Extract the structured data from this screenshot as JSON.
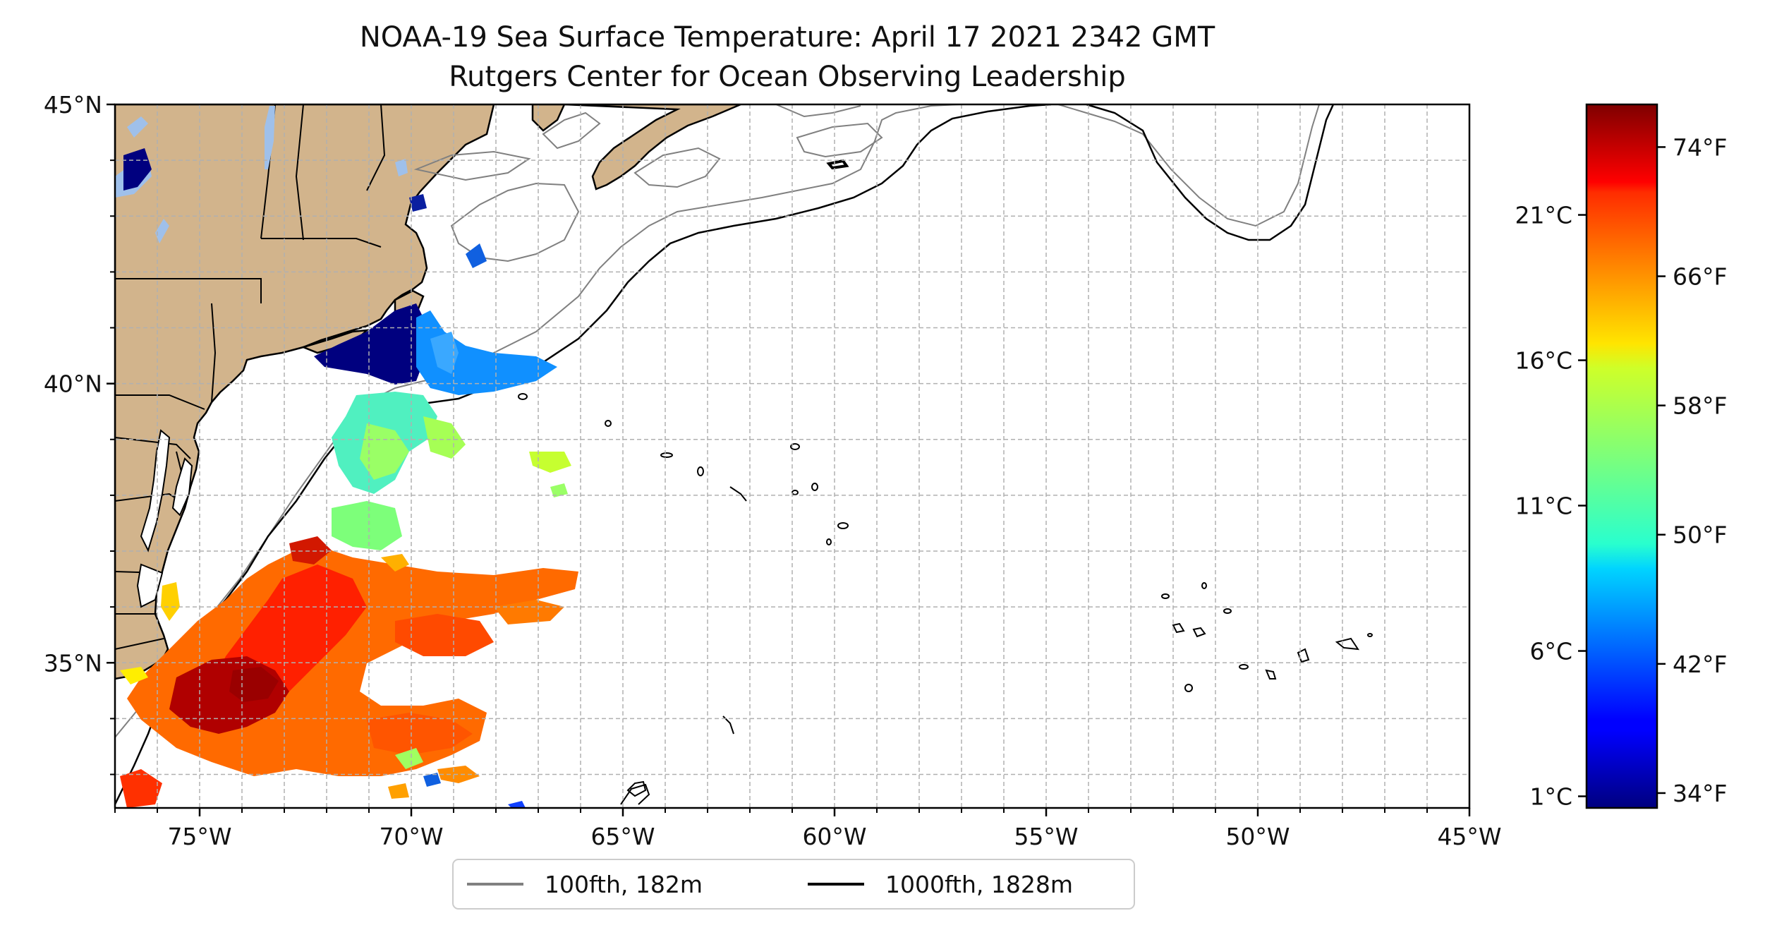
{
  "title": "NOAA-19 Sea Surface Temperature: April 17 2021 2342 GMT",
  "subtitle": "Rutgers Center for Ocean Observing Leadership",
  "map": {
    "lon_range": [
      -77,
      -45
    ],
    "lat_range": [
      32.4,
      45
    ],
    "x_ticks": [
      {
        "value": -75,
        "label": "75°W"
      },
      {
        "value": -70,
        "label": "70°W"
      },
      {
        "value": -65,
        "label": "65°W"
      },
      {
        "value": -60,
        "label": "60°W"
      },
      {
        "value": -55,
        "label": "55°W"
      },
      {
        "value": -50,
        "label": "50°W"
      },
      {
        "value": -45,
        "label": "45°W"
      }
    ],
    "y_ticks": [
      {
        "value": 45,
        "label": "45°N"
      },
      {
        "value": 40,
        "label": "40°N"
      },
      {
        "value": 35,
        "label": "35°N"
      }
    ],
    "gridlines": true,
    "land_color": "#d2b48c",
    "lake_color": "#9fc0ea"
  },
  "legend": {
    "placement": "bottom-center",
    "items": [
      {
        "label": "100fth, 182m",
        "color": "#808080"
      },
      {
        "label": "1000fth, 1828m",
        "color": "#000000"
      }
    ]
  },
  "colorbar": {
    "colormap": "jet",
    "range_c": [
      0.6,
      24.8
    ],
    "celsius_ticks": [
      {
        "value": 21,
        "label": "21°C"
      },
      {
        "value": 16,
        "label": "16°C"
      },
      {
        "value": 11,
        "label": "11°C"
      },
      {
        "value": 6,
        "label": "6°C"
      },
      {
        "value": 1,
        "label": "1°C"
      }
    ],
    "fahrenheit_ticks": [
      {
        "value": 74,
        "label": "74°F"
      },
      {
        "value": 66,
        "label": "66°F"
      },
      {
        "value": 58,
        "label": "58°F"
      },
      {
        "value": 50,
        "label": "50°F"
      },
      {
        "value": 42,
        "label": "42°F"
      },
      {
        "value": 34,
        "label": "34°F"
      }
    ]
  }
}
